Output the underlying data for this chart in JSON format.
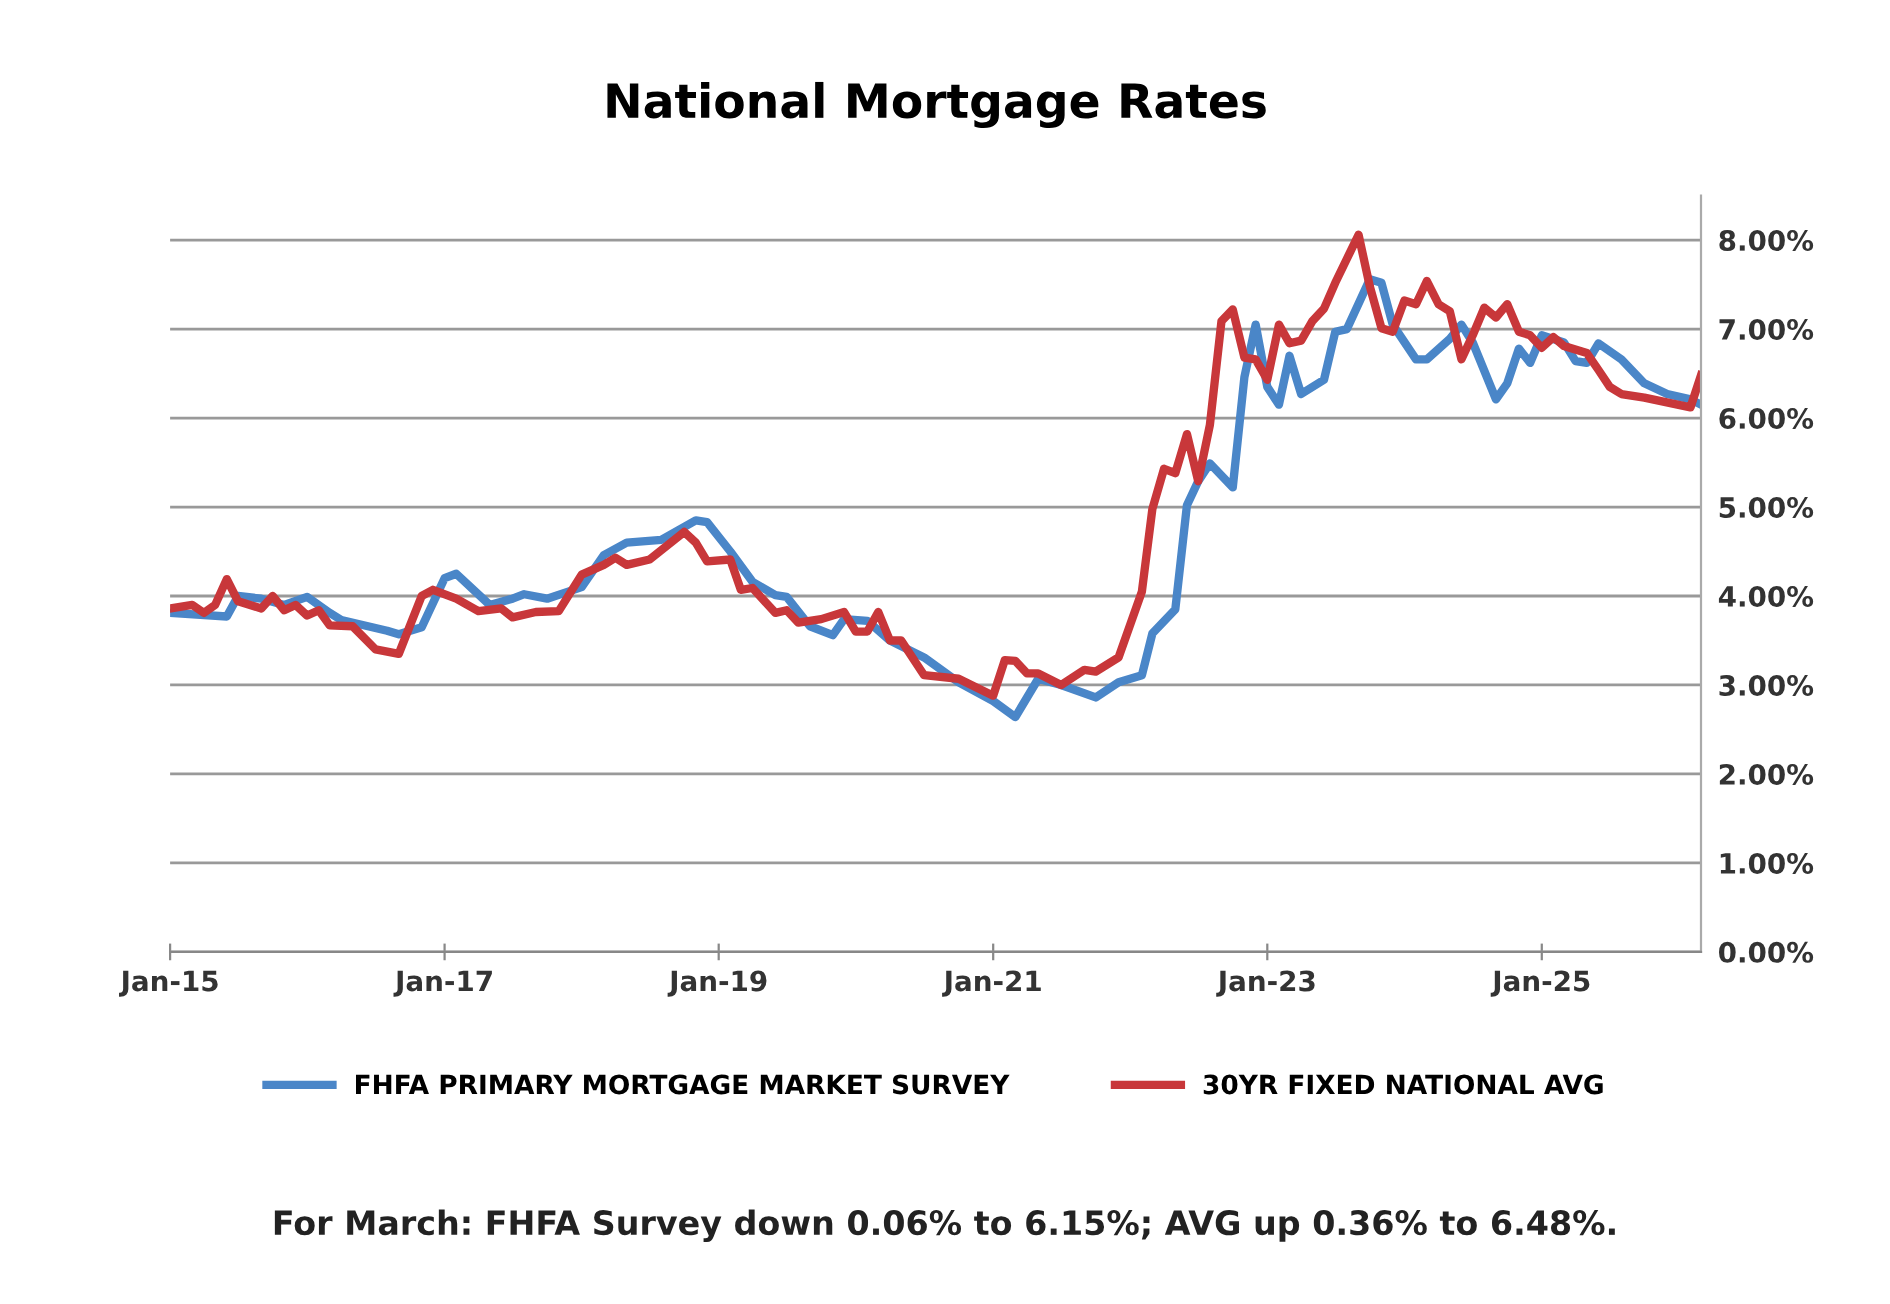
{
  "chart_data": {
    "type": "line",
    "title": "National Mortgage Rates",
    "annotations": [
      "For March: FHFA Survey down 0.06% to 6.15%; AVG up 0.36% to 6.48%."
    ],
    "xlim": [
      "2015-01",
      "2026-03"
    ],
    "xticks": [
      {
        "value": "2015-01",
        "label": "Jan-15"
      },
      {
        "value": "2017-01",
        "label": "Jan-17"
      },
      {
        "value": "2019-01",
        "label": "Jan-19"
      },
      {
        "value": "2021-01",
        "label": "Jan-21"
      },
      {
        "value": "2023-01",
        "label": "Jan-23"
      },
      {
        "value": "2025-01",
        "label": "Jan-25"
      }
    ],
    "ylim": [
      0,
      8.5
    ],
    "yticks": [
      {
        "value": 0,
        "label": "0.00%"
      },
      {
        "value": 1,
        "label": "1.00%"
      },
      {
        "value": 2,
        "label": "2.00%"
      },
      {
        "value": 3,
        "label": "3.00%"
      },
      {
        "value": 4,
        "label": "4.00%"
      },
      {
        "value": 5,
        "label": "5.00%"
      },
      {
        "value": 6,
        "label": "6.00%"
      },
      {
        "value": 7,
        "label": "7.00%"
      },
      {
        "value": 8,
        "label": "8.00%"
      }
    ],
    "grid": "y",
    "legend": "bottom",
    "marker": "none",
    "line_style": "solid",
    "series": [
      {
        "name": "FHFA PRIMARY MORTGAGE MARKET SURVEY",
        "color": "#4a86c8",
        "x": [
          "2015-01",
          "2015-06",
          "2015-07",
          "2015-09",
          "2015-11",
          "2016-01",
          "2016-03",
          "2016-04",
          "2016-08",
          "2016-09",
          "2016-11",
          "2017-01",
          "2017-02",
          "2017-05",
          "2017-07",
          "2017-08",
          "2017-10",
          "2018-01",
          "2018-03",
          "2018-05",
          "2018-08",
          "2018-11",
          "2018-12",
          "2019-02",
          "2019-04",
          "2019-06",
          "2019-07",
          "2019-09",
          "2019-11",
          "2019-12",
          "2020-02",
          "2020-04",
          "2020-07",
          "2020-10",
          "2021-01",
          "2021-03",
          "2021-05",
          "2021-07",
          "2021-10",
          "2021-12",
          "2022-02",
          "2022-03",
          "2022-05",
          "2022-06",
          "2022-07",
          "2022-08",
          "2022-10",
          "2022-11",
          "2022-12",
          "2023-01",
          "2023-02",
          "2023-03",
          "2023-04",
          "2023-06",
          "2023-07",
          "2023-08",
          "2023-10",
          "2023-11",
          "2023-12",
          "2024-02",
          "2024-03",
          "2024-05",
          "2024-06",
          "2024-07",
          "2024-09",
          "2024-10",
          "2024-11",
          "2024-12",
          "2025-01",
          "2025-03",
          "2025-04",
          "2025-05",
          "2025-06",
          "2025-08",
          "2025-10",
          "2025-12",
          "2026-02",
          "2026-03"
        ],
        "values": [
          3.81,
          3.77,
          4.0,
          3.97,
          3.9,
          3.99,
          3.81,
          3.73,
          3.61,
          3.57,
          3.65,
          4.2,
          4.25,
          3.9,
          3.97,
          4.02,
          3.97,
          4.1,
          4.46,
          4.6,
          4.63,
          4.85,
          4.83,
          4.5,
          4.16,
          4.01,
          3.99,
          3.66,
          3.56,
          3.74,
          3.72,
          3.5,
          3.31,
          3.03,
          2.82,
          2.64,
          3.07,
          3.0,
          2.86,
          3.03,
          3.11,
          3.58,
          3.85,
          5.02,
          5.29,
          5.49,
          5.22,
          6.46,
          7.05,
          6.35,
          6.15,
          6.7,
          6.27,
          6.43,
          6.97,
          7.0,
          7.56,
          7.52,
          7.05,
          6.66,
          6.66,
          6.89,
          7.05,
          6.85,
          6.21,
          6.39,
          6.78,
          6.62,
          6.93,
          6.85,
          6.64,
          6.62,
          6.84,
          6.66,
          6.39,
          6.27,
          6.21,
          6.15
        ]
      },
      {
        "name": "30YR FIXED NATIONAL AVG",
        "color": "#c8373a",
        "x": [
          "2015-01",
          "2015-03",
          "2015-04",
          "2015-05",
          "2015-06",
          "2015-07",
          "2015-09",
          "2015-10",
          "2015-11",
          "2015-12",
          "2016-01",
          "2016-02",
          "2016-03",
          "2016-05",
          "2016-07",
          "2016-09",
          "2016-11",
          "2016-12",
          "2017-02",
          "2017-04",
          "2017-06",
          "2017-07",
          "2017-09",
          "2017-11",
          "2018-01",
          "2018-03",
          "2018-04",
          "2018-05",
          "2018-07",
          "2018-10",
          "2018-11",
          "2018-12",
          "2019-02",
          "2019-03",
          "2019-04",
          "2019-06",
          "2019-07",
          "2019-08",
          "2019-10",
          "2019-12",
          "2020-01",
          "2020-02",
          "2020-03",
          "2020-04",
          "2020-05",
          "2020-07",
          "2020-10",
          "2021-01",
          "2021-02",
          "2021-03",
          "2021-04",
          "2021-05",
          "2021-07",
          "2021-09",
          "2021-10",
          "2021-12",
          "2022-02",
          "2022-03",
          "2022-04",
          "2022-05",
          "2022-06",
          "2022-07",
          "2022-08",
          "2022-09",
          "2022-10",
          "2022-11",
          "2022-12",
          "2023-01",
          "2023-02",
          "2023-03",
          "2023-04",
          "2023-05",
          "2023-06",
          "2023-07",
          "2023-08",
          "2023-09",
          "2023-10",
          "2023-11",
          "2023-12",
          "2024-01",
          "2024-02",
          "2024-03",
          "2024-04",
          "2024-05",
          "2024-06",
          "2024-07",
          "2024-08",
          "2024-09",
          "2024-10",
          "2024-11",
          "2024-12",
          "2025-01",
          "2025-02",
          "2025-03",
          "2025-05",
          "2025-06",
          "2025-07",
          "2025-08",
          "2025-10",
          "2026-02",
          "2026-03"
        ],
        "values": [
          3.86,
          3.9,
          3.81,
          3.9,
          4.19,
          3.94,
          3.86,
          4.0,
          3.84,
          3.9,
          3.78,
          3.84,
          3.67,
          3.66,
          3.4,
          3.35,
          4.0,
          4.07,
          3.97,
          3.83,
          3.86,
          3.76,
          3.82,
          3.83,
          4.24,
          4.35,
          4.43,
          4.35,
          4.41,
          4.72,
          4.6,
          4.39,
          4.41,
          4.07,
          4.09,
          3.81,
          3.84,
          3.7,
          3.74,
          3.82,
          3.6,
          3.6,
          3.82,
          3.5,
          3.5,
          3.11,
          3.07,
          2.88,
          3.28,
          3.27,
          3.13,
          3.13,
          3.0,
          3.17,
          3.15,
          3.31,
          4.05,
          4.98,
          5.43,
          5.38,
          5.82,
          5.29,
          5.92,
          7.09,
          7.22,
          6.68,
          6.66,
          6.43,
          7.05,
          6.84,
          6.87,
          7.09,
          7.23,
          7.52,
          7.79,
          8.06,
          7.48,
          7.01,
          6.97,
          7.32,
          7.28,
          7.54,
          7.28,
          7.2,
          6.66,
          6.93,
          7.24,
          7.13,
          7.28,
          6.97,
          6.93,
          6.79,
          6.91,
          6.81,
          6.73,
          6.54,
          6.35,
          6.27,
          6.23,
          6.12,
          6.48
        ]
      }
    ]
  }
}
